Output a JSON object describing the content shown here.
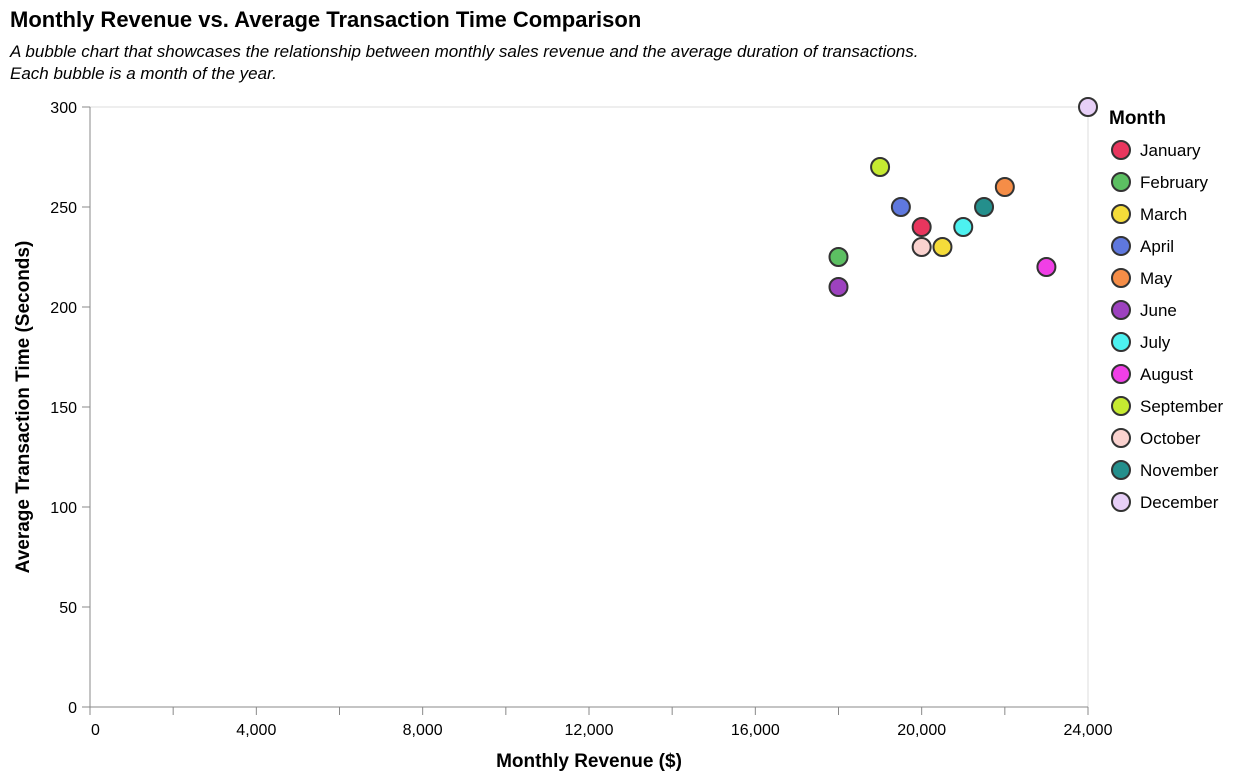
{
  "chart_data": {
    "type": "scatter",
    "title": "Monthly Revenue vs. Average Transaction Time Comparison",
    "subtitle": [
      "A bubble chart that showcases the relationship between monthly sales revenue and the average duration of transactions.",
      "Each bubble is a month of the year."
    ],
    "xlabel": "Monthly Revenue ($)",
    "ylabel": "Average Transaction Time (Seconds)",
    "xlim": [
      0,
      24000
    ],
    "ylim": [
      0,
      300
    ],
    "x_ticks": [
      0,
      4000,
      8000,
      12000,
      16000,
      20000,
      24000
    ],
    "x_tick_labels": [
      "0",
      "4,000",
      "8,000",
      "12,000",
      "16,000",
      "20,000",
      "24,000"
    ],
    "x_minor_ticks": [
      2000,
      6000,
      10000,
      14000,
      18000,
      22000
    ],
    "y_ticks": [
      0,
      50,
      100,
      150,
      200,
      250,
      300
    ],
    "y_tick_labels": [
      "0",
      "50",
      "100",
      "150",
      "200",
      "250",
      "300"
    ],
    "grid": false,
    "legend_title": "Month",
    "legend_placement": "right",
    "series": [
      {
        "name": "January",
        "color": "#e8365e",
        "x": 20000,
        "y": 240
      },
      {
        "name": "February",
        "color": "#5cbf62",
        "x": 18000,
        "y": 225
      },
      {
        "name": "March",
        "color": "#f5dc3a",
        "x": 20500,
        "y": 230
      },
      {
        "name": "April",
        "color": "#5f78de",
        "x": 19500,
        "y": 250
      },
      {
        "name": "May",
        "color": "#f58d47",
        "x": 22000,
        "y": 260
      },
      {
        "name": "June",
        "color": "#9d42bf",
        "x": 18000,
        "y": 210
      },
      {
        "name": "July",
        "color": "#4df1f0",
        "x": 21000,
        "y": 240
      },
      {
        "name": "August",
        "color": "#f03fe6",
        "x": 23000,
        "y": 220
      },
      {
        "name": "September",
        "color": "#c6ea31",
        "x": 19000,
        "y": 270
      },
      {
        "name": "October",
        "color": "#fad2cf",
        "x": 20000,
        "y": 230
      },
      {
        "name": "November",
        "color": "#248f8c",
        "x": 21500,
        "y": 250
      },
      {
        "name": "December",
        "color": "#e7cff7",
        "x": 24000,
        "y": 300
      }
    ]
  }
}
